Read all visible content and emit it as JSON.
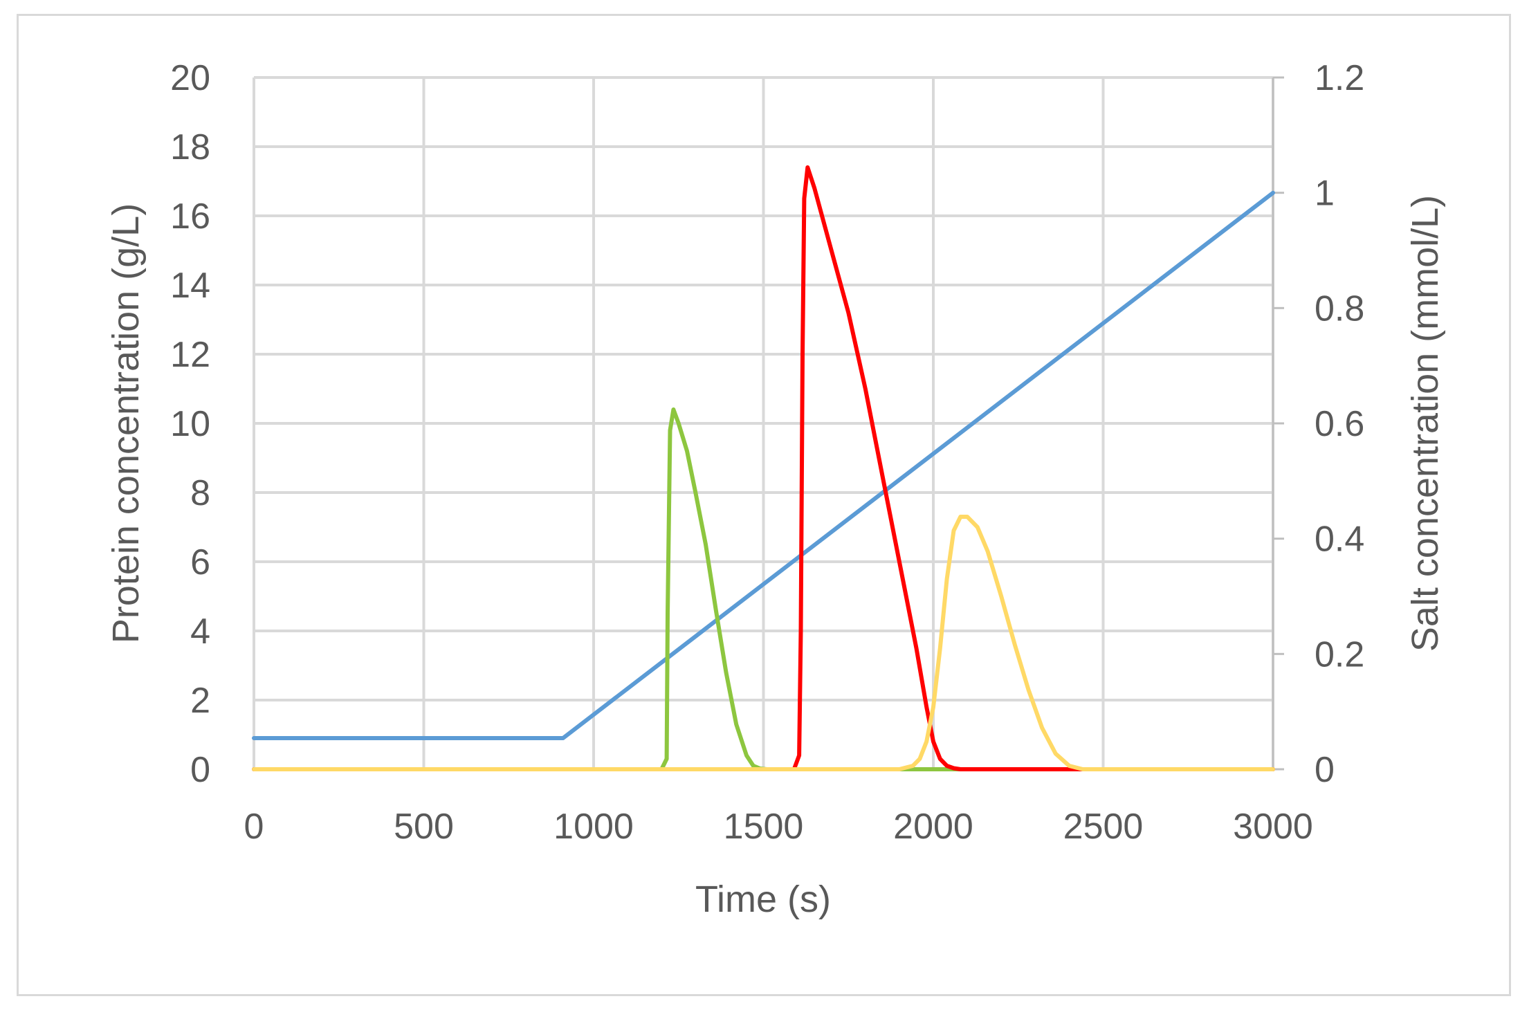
{
  "chart_data": {
    "type": "line",
    "xlabel": "Time (s)",
    "ylabel": "Protein concentration (g/L)",
    "y2label": "Salt concentration (mmol/L)",
    "xlim": [
      0,
      3000
    ],
    "ylim": [
      0,
      20
    ],
    "y2lim": [
      0,
      1.2
    ],
    "x_ticks": [
      "0",
      "500",
      "1000",
      "1500",
      "2000",
      "2500",
      "3000"
    ],
    "y_ticks": [
      "0",
      "2",
      "4",
      "6",
      "8",
      "10",
      "12",
      "14",
      "16",
      "18",
      "20"
    ],
    "y2_ticks": [
      "0",
      "0.2",
      "0.4",
      "0.6",
      "0.8",
      "1",
      "1.2"
    ],
    "grid": true,
    "legend": "none",
    "series": [
      {
        "color": "#5b9bd5",
        "axis": "right",
        "x": [
          0,
          910,
          3000
        ],
        "y": [
          0.054,
          0.054,
          1.0
        ]
      },
      {
        "color": "#8dc63f",
        "axis": "left",
        "x": [
          0,
          1200,
          1215,
          1218,
          1225,
          1235,
          1250,
          1275,
          1300,
          1330,
          1360,
          1390,
          1420,
          1450,
          1470,
          1490,
          1510,
          1530,
          1560,
          3000
        ],
        "y": [
          0,
          0,
          0.3,
          4.5,
          9.8,
          10.4,
          10.0,
          9.2,
          8.0,
          6.5,
          4.6,
          2.8,
          1.3,
          0.4,
          0.1,
          0.02,
          0,
          0,
          0,
          0
        ]
      },
      {
        "color": "#ff0000",
        "axis": "left",
        "x": [
          0,
          1590,
          1605,
          1610,
          1615,
          1620,
          1630,
          1650,
          1700,
          1750,
          1800,
          1850,
          1900,
          1950,
          1980,
          2000,
          2020,
          2040,
          2060,
          2080,
          2100,
          3000
        ],
        "y": [
          0,
          0,
          0.4,
          4.0,
          12.0,
          16.5,
          17.4,
          16.8,
          15.0,
          13.2,
          11.0,
          8.5,
          6.0,
          3.5,
          1.8,
          0.8,
          0.3,
          0.1,
          0.03,
          0,
          0,
          0
        ]
      },
      {
        "color": "#ffd966",
        "axis": "left",
        "x": [
          0,
          1900,
          1940,
          1960,
          1980,
          2000,
          2020,
          2040,
          2060,
          2080,
          2100,
          2130,
          2160,
          2200,
          2240,
          2280,
          2320,
          2360,
          2400,
          2440,
          2480,
          3000
        ],
        "y": [
          0,
          0,
          0.1,
          0.3,
          0.8,
          1.8,
          3.5,
          5.5,
          6.9,
          7.3,
          7.3,
          7.0,
          6.3,
          5.0,
          3.6,
          2.3,
          1.2,
          0.45,
          0.1,
          0,
          0,
          0
        ]
      }
    ]
  }
}
